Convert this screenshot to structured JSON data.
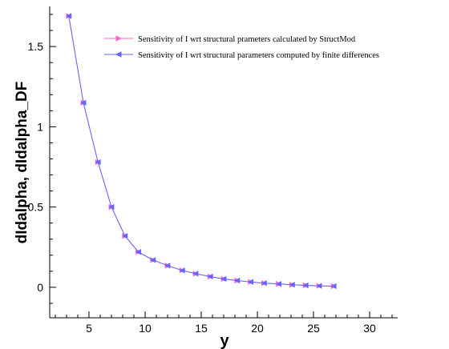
{
  "chart_data": {
    "type": "line",
    "xlabel": "y",
    "ylabel": "dIdalpha, dIdalpha_DF",
    "xlim": [
      1.5,
      32.5
    ],
    "ylim": [
      -0.19,
      1.75
    ],
    "x_ticks": [
      5,
      10,
      15,
      20,
      25,
      30
    ],
    "x_tick_labels": [
      "5",
      "10",
      "15",
      "20",
      "25",
      "30"
    ],
    "x_minor_step": 1,
    "y_ticks": [
      0,
      0.5,
      1,
      1.5
    ],
    "y_tick_labels": [
      "0",
      "0.5",
      "1",
      "1.5"
    ],
    "y_minor_step": 0.1,
    "grid": false,
    "legend_position": "top-right",
    "x": [
      3.2,
      4.5,
      5.8,
      7.0,
      8.2,
      9.4,
      10.7,
      12.0,
      13.3,
      14.5,
      15.8,
      17.0,
      18.2,
      19.4,
      20.6,
      21.9,
      23.1,
      24.3,
      25.5,
      26.8
    ],
    "series": [
      {
        "name": "Sensitivity of I wrt structural prameters calculated by StructMod",
        "color": "#ff66cc",
        "marker": "triangle-right",
        "values": [
          1.69,
          1.15,
          0.78,
          0.5,
          0.32,
          0.22,
          0.17,
          0.135,
          0.105,
          0.085,
          0.067,
          0.052,
          0.042,
          0.033,
          0.026,
          0.021,
          0.016,
          0.012,
          0.009,
          0.007
        ]
      },
      {
        "name": "Sensitivity of I wrt structural parameters computed by finite differences",
        "color": "#6666ff",
        "marker": "triangle-left",
        "values": [
          1.69,
          1.15,
          0.78,
          0.5,
          0.32,
          0.22,
          0.17,
          0.135,
          0.105,
          0.085,
          0.067,
          0.052,
          0.042,
          0.033,
          0.026,
          0.021,
          0.016,
          0.012,
          0.009,
          0.007
        ]
      }
    ]
  }
}
